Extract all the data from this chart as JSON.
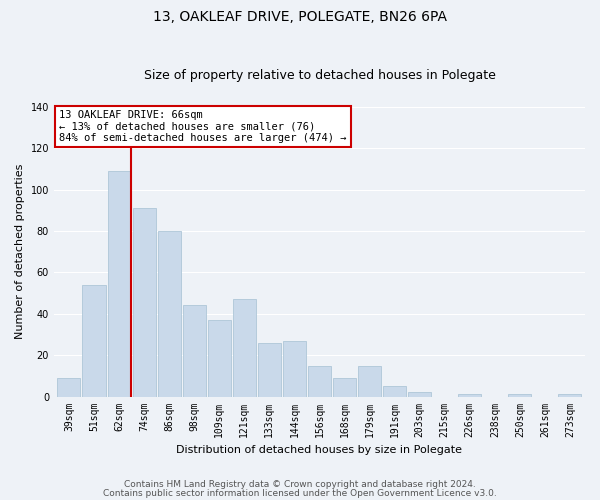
{
  "title": "13, OAKLEAF DRIVE, POLEGATE, BN26 6PA",
  "subtitle": "Size of property relative to detached houses in Polegate",
  "xlabel": "Distribution of detached houses by size in Polegate",
  "ylabel": "Number of detached properties",
  "bar_labels": [
    "39sqm",
    "51sqm",
    "62sqm",
    "74sqm",
    "86sqm",
    "98sqm",
    "109sqm",
    "121sqm",
    "133sqm",
    "144sqm",
    "156sqm",
    "168sqm",
    "179sqm",
    "191sqm",
    "203sqm",
    "215sqm",
    "226sqm",
    "238sqm",
    "250sqm",
    "261sqm",
    "273sqm"
  ],
  "bar_values": [
    9,
    54,
    109,
    91,
    80,
    44,
    37,
    47,
    26,
    27,
    15,
    9,
    15,
    5,
    2,
    0,
    1,
    0,
    1,
    0,
    1
  ],
  "bar_color": "#c9d9ea",
  "bar_edge_color": "#aec6d8",
  "highlight_x_label": "62sqm",
  "highlight_line_color": "#cc0000",
  "ylim": [
    0,
    140
  ],
  "yticks": [
    0,
    20,
    40,
    60,
    80,
    100,
    120,
    140
  ],
  "annotation_text": "13 OAKLEAF DRIVE: 66sqm\n← 13% of detached houses are smaller (76)\n84% of semi-detached houses are larger (474) →",
  "annotation_box_color": "#ffffff",
  "annotation_box_edge": "#cc0000",
  "footer1": "Contains HM Land Registry data © Crown copyright and database right 2024.",
  "footer2": "Contains public sector information licensed under the Open Government Licence v3.0.",
  "background_color": "#eef2f7",
  "plot_bg_color": "#eef2f7",
  "grid_color": "#ffffff",
  "title_fontsize": 10,
  "subtitle_fontsize": 9,
  "axis_label_fontsize": 8,
  "tick_fontsize": 7,
  "annotation_fontsize": 7.5,
  "footer_fontsize": 6.5
}
